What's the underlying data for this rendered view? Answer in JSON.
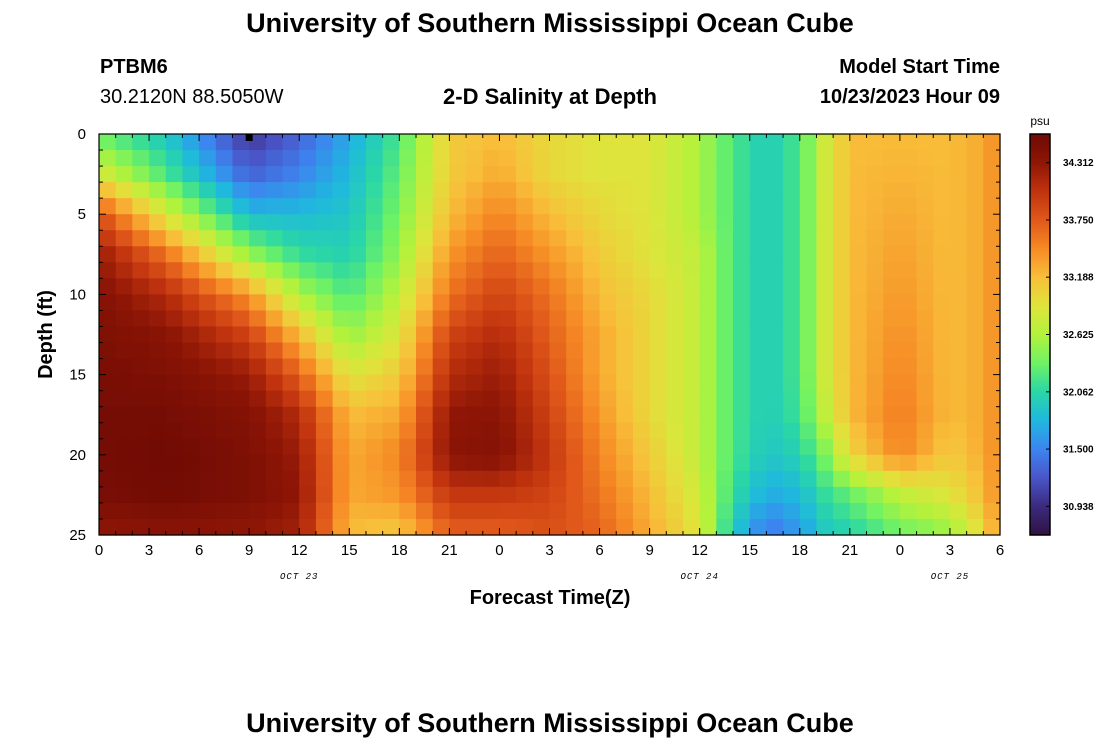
{
  "header": {
    "title": "University of Southern Mississippi Ocean Cube",
    "station_id": "PTBM6",
    "coordinates": "30.2120N  88.5050W",
    "plot_title": "2-D Salinity at Depth",
    "model_start_label": "Model Start Time",
    "model_start_value": "10/23/2023 Hour 09"
  },
  "footer": {
    "title": "University of Southern Mississippi Ocean Cube"
  },
  "chart_data": {
    "type": "heatmap",
    "title": "2-D Salinity at Depth",
    "xlabel": "Forecast Time(Z)",
    "ylabel": "Depth (ft)",
    "x_tick_labels": [
      "0",
      "3",
      "6",
      "9",
      "12",
      "15",
      "18",
      "21",
      "0",
      "3",
      "6",
      "9",
      "12",
      "15",
      "18",
      "21",
      "0",
      "3",
      "6"
    ],
    "x_range_hours": [
      0,
      54
    ],
    "date_labels": [
      {
        "hour": 12,
        "label": "OCT 23"
      },
      {
        "hour": 36,
        "label": "OCT 24"
      },
      {
        "hour": 51,
        "label": "OCT 25"
      }
    ],
    "y_ticks": [
      0,
      5,
      10,
      15,
      20,
      25
    ],
    "y_range": [
      0,
      25
    ],
    "y_inverted": true,
    "model_start_hour": 9,
    "colorbar": {
      "unit": "psu",
      "range": [
        30.656,
        34.594
      ],
      "ticks": [
        "34.312",
        "33.750",
        "33.188",
        "32.625",
        "32.062",
        "31.500",
        "30.938"
      ],
      "colors": [
        "#2e1343",
        "#3b2a7e",
        "#4a55c8",
        "#3d84f0",
        "#1fb8de",
        "#2ad7a6",
        "#6ff264",
        "#b3f23c",
        "#dfe43b",
        "#f8bf3a",
        "#f68a25",
        "#e0581a",
        "#c0330e",
        "#8e1606",
        "#6e0a04"
      ]
    },
    "grid": false,
    "columns": [
      {
        "x": 0,
        "depth": [
          0,
          2.5,
          5,
          7.5,
          10,
          12.5,
          15,
          17.5,
          20,
          22.5,
          25
        ],
        "values": [
          32.3,
          32.85,
          33.8,
          34.25,
          34.4,
          34.45,
          34.5,
          34.52,
          34.52,
          34.5,
          34.3
        ]
      },
      {
        "x": 4,
        "depth": [
          0,
          2.5,
          5,
          7.5,
          10,
          12.5,
          15,
          17.5,
          20,
          22.5,
          25
        ],
        "values": [
          31.9,
          32.2,
          32.85,
          33.6,
          34.1,
          34.35,
          34.45,
          34.52,
          34.58,
          34.55,
          34.35
        ]
      },
      {
        "x": 9,
        "depth": [
          0,
          2.5,
          5,
          7.5,
          10,
          12.5,
          15,
          17.5,
          20,
          22.5,
          25
        ],
        "values": [
          31.0,
          31.3,
          31.8,
          32.5,
          33.4,
          33.9,
          34.25,
          34.4,
          34.45,
          34.45,
          34.3
        ]
      },
      {
        "x": 12,
        "depth": [
          0,
          2.5,
          5,
          7.5,
          10,
          12.5,
          15,
          17.5,
          20,
          22.5,
          25
        ],
        "values": [
          31.3,
          31.5,
          31.8,
          32.1,
          32.6,
          33.2,
          33.7,
          34.1,
          34.25,
          34.3,
          34.2
        ]
      },
      {
        "x": 15,
        "depth": [
          0,
          2.5,
          5,
          7.5,
          10,
          12.5,
          15,
          17.5,
          20,
          22.5,
          25
        ],
        "values": [
          31.7,
          31.8,
          31.9,
          32.0,
          32.2,
          32.5,
          32.9,
          33.2,
          33.3,
          33.3,
          33.2
        ]
      },
      {
        "x": 18,
        "depth": [
          0,
          2.5,
          5,
          7.5,
          10,
          12.5,
          15,
          17.5,
          20,
          22.5,
          25
        ],
        "values": [
          32.2,
          32.3,
          32.4,
          32.5,
          32.7,
          32.9,
          33.1,
          33.3,
          33.5,
          33.4,
          33.1
        ]
      },
      {
        "x": 21,
        "depth": [
          0,
          2.5,
          5,
          7.5,
          10,
          12.5,
          15,
          17.5,
          20,
          22.5,
          25
        ],
        "values": [
          33.1,
          33.1,
          33.2,
          33.4,
          33.6,
          33.9,
          34.1,
          34.3,
          34.35,
          34.0,
          33.7
        ]
      },
      {
        "x": 24,
        "depth": [
          0,
          2.5,
          5,
          7.5,
          10,
          12.5,
          15,
          17.5,
          20,
          22.5,
          25
        ],
        "values": [
          33.2,
          33.3,
          33.5,
          33.7,
          33.9,
          34.1,
          34.25,
          34.35,
          34.4,
          34.0,
          33.7
        ]
      },
      {
        "x": 27,
        "depth": [
          0,
          2.5,
          5,
          7.5,
          10,
          12.5,
          15,
          17.5,
          20,
          22.5,
          25
        ],
        "values": [
          33.0,
          33.0,
          33.2,
          33.4,
          33.6,
          33.7,
          33.8,
          33.9,
          34.0,
          33.9,
          33.8
        ]
      },
      {
        "x": 30,
        "depth": [
          0,
          2.5,
          5,
          7.5,
          10,
          12.5,
          15,
          17.5,
          20,
          22.5,
          25
        ],
        "values": [
          32.9,
          32.9,
          33.0,
          33.1,
          33.2,
          33.3,
          33.3,
          33.4,
          33.5,
          33.6,
          33.7
        ]
      },
      {
        "x": 33,
        "depth": [
          0,
          2.5,
          5,
          7.5,
          10,
          12.5,
          15,
          17.5,
          20,
          22.5,
          25
        ],
        "values": [
          32.9,
          32.9,
          32.9,
          32.9,
          33.0,
          33.0,
          33.0,
          33.0,
          33.1,
          33.2,
          33.3
        ]
      },
      {
        "x": 36,
        "depth": [
          0,
          2.5,
          5,
          7.5,
          10,
          12.5,
          15,
          17.5,
          20,
          22.5,
          25
        ],
        "values": [
          32.6,
          32.6,
          32.6,
          32.7,
          32.7,
          32.7,
          32.7,
          32.7,
          32.7,
          32.8,
          32.9
        ]
      },
      {
        "x": 38,
        "depth": [
          0,
          2.5,
          5,
          7.5,
          10,
          12.5,
          15,
          17.5,
          20,
          22.5,
          25
        ],
        "values": [
          32.2,
          32.2,
          32.2,
          32.2,
          32.2,
          32.2,
          32.2,
          32.2,
          32.2,
          32.1,
          31.9
        ]
      },
      {
        "x": 40,
        "depth": [
          0,
          2.5,
          5,
          7.5,
          10,
          12.5,
          15,
          17.5,
          20,
          22.5,
          25
        ],
        "values": [
          31.95,
          31.95,
          31.95,
          31.95,
          31.95,
          31.95,
          31.95,
          31.95,
          31.9,
          31.7,
          31.4
        ]
      },
      {
        "x": 42,
        "depth": [
          0,
          2.5,
          5,
          7.5,
          10,
          12.5,
          15,
          17.5,
          20,
          22.5,
          25
        ],
        "values": [
          32.2,
          32.2,
          32.2,
          32.2,
          32.2,
          32.2,
          32.2,
          32.15,
          32.0,
          31.8,
          31.6
        ]
      },
      {
        "x": 43.5,
        "depth": [
          0,
          2.5,
          5,
          7.5,
          10,
          12.5,
          15,
          17.5,
          20,
          22.5,
          25
        ],
        "values": [
          32.8,
          32.8,
          32.8,
          32.8,
          32.8,
          32.8,
          32.8,
          32.7,
          32.4,
          32.1,
          31.9
        ]
      },
      {
        "x": 45,
        "depth": [
          0,
          2.5,
          5,
          7.5,
          10,
          12.5,
          15,
          17.5,
          20,
          22.5,
          25
        ],
        "values": [
          33.2,
          33.2,
          33.2,
          33.2,
          33.2,
          33.2,
          33.2,
          33.2,
          33.0,
          32.3,
          32.0
        ]
      },
      {
        "x": 48,
        "depth": [
          0,
          2.5,
          5,
          7.5,
          10,
          12.5,
          15,
          17.5,
          20,
          22.5,
          25
        ],
        "values": [
          33.2,
          33.25,
          33.3,
          33.35,
          33.4,
          33.45,
          33.5,
          33.55,
          33.5,
          32.7,
          32.3
        ]
      },
      {
        "x": 51,
        "depth": [
          0,
          2.5,
          5,
          7.5,
          10,
          12.5,
          15,
          17.5,
          20,
          22.5,
          25
        ],
        "values": [
          33.2,
          33.2,
          33.2,
          33.2,
          33.2,
          33.2,
          33.2,
          33.2,
          33.1,
          32.9,
          32.5
        ]
      },
      {
        "x": 53,
        "depth": [
          0,
          2.5,
          5,
          7.5,
          10,
          12.5,
          15,
          17.5,
          20,
          22.5,
          25
        ],
        "values": [
          33.3,
          33.3,
          33.3,
          33.3,
          33.3,
          33.3,
          33.3,
          33.3,
          33.3,
          33.2,
          33.0
        ]
      },
      {
        "x": 54,
        "depth": [
          0,
          2.5,
          5,
          7.5,
          10,
          12.5,
          15,
          17.5,
          20,
          22.5,
          25
        ],
        "values": [
          33.5,
          33.5,
          33.5,
          33.5,
          33.5,
          33.5,
          33.5,
          33.5,
          33.5,
          33.5,
          33.4
        ]
      }
    ]
  }
}
